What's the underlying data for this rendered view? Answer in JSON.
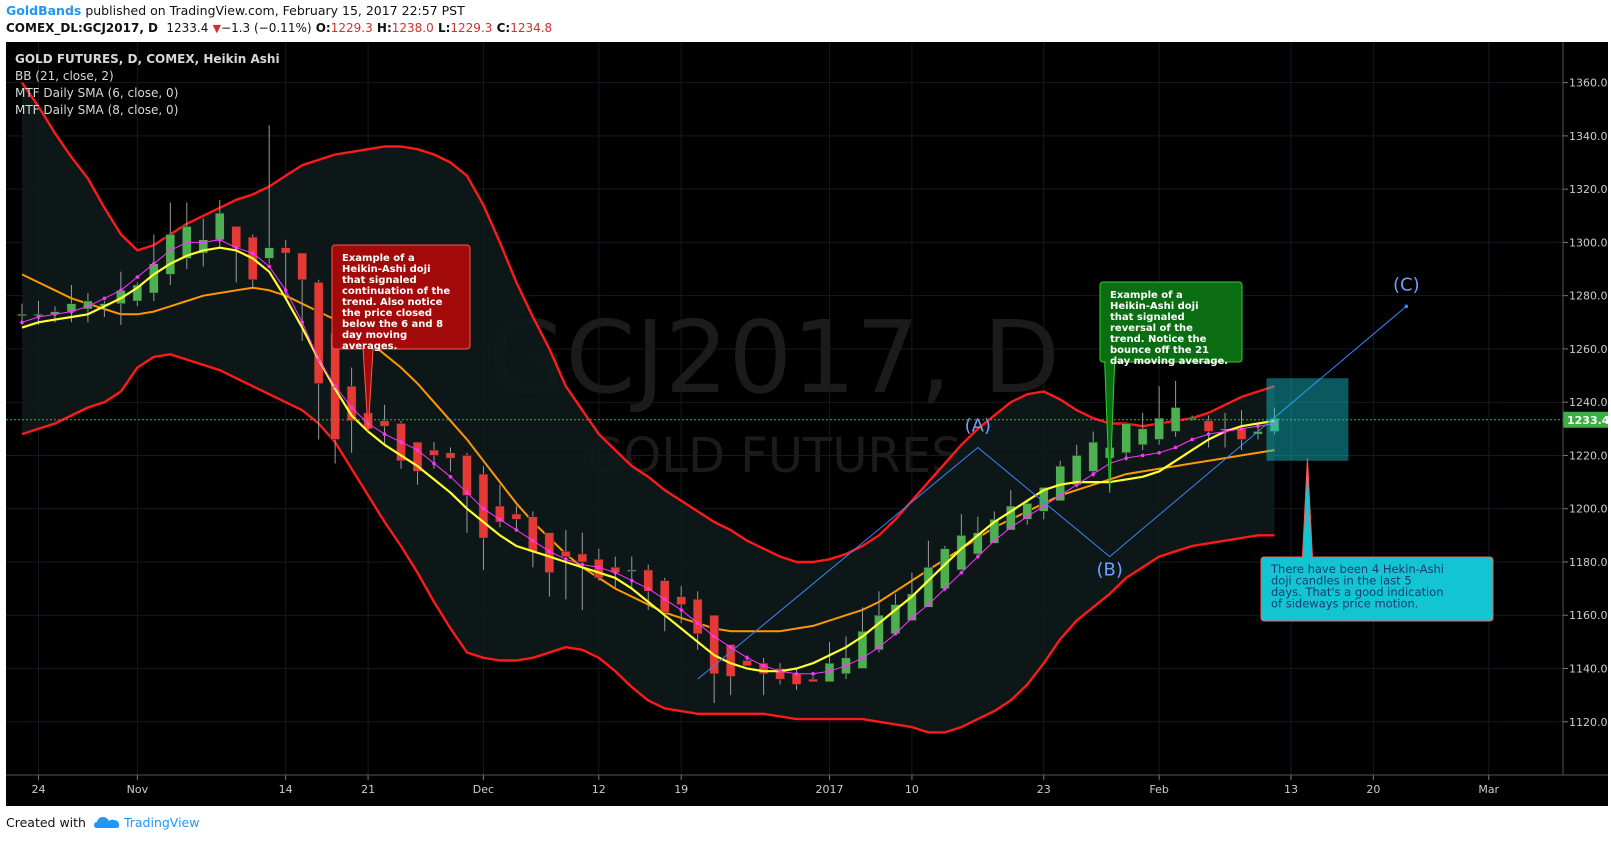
{
  "header": {
    "author": "GoldBands",
    "published": "published on TradingView.com, February 15, 2017 22:57 PST",
    "symbol_line": "COMEX_DL:GCJ2017, D",
    "last_price": "1233.4",
    "change": "−1.3 (−0.11%)",
    "o_label": "O:",
    "o": "1229.3",
    "h_label": "H:",
    "h": "1238.0",
    "l_label": "L:",
    "l": "1229.3",
    "c_label": "C:",
    "c": "1234.8"
  },
  "legend": {
    "title": "GOLD FUTURES, D, COMEX, Heikin Ashi",
    "bb": "BB (21, close, 2)",
    "sma6": "MTF Daily SMA (6, close, 0)",
    "sma8": "MTF Daily SMA (8, close, 0)"
  },
  "watermark": {
    "line1": "GCJ2017, D",
    "line2": "GOLD FUTURES"
  },
  "price_tag": "1233.4",
  "footer": {
    "created_with": "Created with",
    "brand": "TradingView"
  },
  "colors": {
    "background": "#000000",
    "up_candle": "#4caf50",
    "down_candle": "#e53935",
    "bb_band": "#ff1a1a",
    "bb_basis": "#ff9800",
    "sma6": "#ff33ff",
    "sma8": "#ffff33",
    "trendline": "#3a84ff",
    "note_red": "#a30b0b",
    "note_green": "#0b6e12",
    "note_cyan": "#13c5d2"
  },
  "chart_data": {
    "type": "candlestick",
    "style": "Heikin Ashi",
    "ylim": [
      1108,
      1370
    ],
    "y_ticks": [
      "1120.0",
      "1140.0",
      "1160.0",
      "1180.0",
      "1200.0",
      "1220.0",
      "1240.0",
      "1260.0",
      "1280.0",
      "1300.0",
      "1320.0",
      "1340.0",
      "1360.0"
    ],
    "x_ticks": [
      {
        "label": "24",
        "bar": 1
      },
      {
        "label": "Nov",
        "bar": 7
      },
      {
        "label": "14",
        "bar": 16
      },
      {
        "label": "21",
        "bar": 21
      },
      {
        "label": "Dec",
        "bar": 28
      },
      {
        "label": "12",
        "bar": 35
      },
      {
        "label": "19",
        "bar": 40
      },
      {
        "label": "2017",
        "bar": 49
      },
      {
        "label": "10",
        "bar": 54
      },
      {
        "label": "23",
        "bar": 62
      },
      {
        "label": "Feb",
        "bar": 69
      },
      {
        "label": "13",
        "bar": 77
      },
      {
        "label": "20",
        "bar": 82
      },
      {
        "label": "Mar",
        "bar": 89
      }
    ],
    "candles": [
      {
        "o": 1273,
        "h": 1277,
        "l": 1269,
        "c": 1273
      },
      {
        "o": 1273,
        "h": 1278,
        "l": 1269,
        "c": 1273
      },
      {
        "o": 1273,
        "h": 1276,
        "l": 1270,
        "c": 1274
      },
      {
        "o": 1274,
        "h": 1284,
        "l": 1270,
        "c": 1277
      },
      {
        "o": 1275,
        "h": 1281,
        "l": 1270,
        "c": 1278
      },
      {
        "o": 1276,
        "h": 1278,
        "l": 1272,
        "c": 1277
      },
      {
        "o": 1277,
        "h": 1289,
        "l": 1269,
        "c": 1282
      },
      {
        "o": 1278,
        "h": 1285,
        "l": 1276,
        "c": 1284
      },
      {
        "o": 1281,
        "h": 1303,
        "l": 1278,
        "c": 1292
      },
      {
        "o": 1288,
        "h": 1315,
        "l": 1284,
        "c": 1303
      },
      {
        "o": 1294,
        "h": 1315,
        "l": 1290,
        "c": 1306
      },
      {
        "o": 1296,
        "h": 1309,
        "l": 1291,
        "c": 1301
      },
      {
        "o": 1301,
        "h": 1316,
        "l": 1298,
        "c": 1311
      },
      {
        "o": 1306,
        "h": 1306,
        "l": 1285,
        "c": 1298
      },
      {
        "o": 1302,
        "h": 1303,
        "l": 1283,
        "c": 1286
      },
      {
        "o": 1294,
        "h": 1344,
        "l": 1292,
        "c": 1298
      },
      {
        "o": 1298,
        "h": 1301,
        "l": 1279,
        "c": 1296
      },
      {
        "o": 1296,
        "h": 1296,
        "l": 1263,
        "c": 1286
      },
      {
        "o": 1285,
        "h": 1286,
        "l": 1226,
        "c": 1247
      },
      {
        "o": 1266,
        "h": 1270,
        "l": 1217,
        "c": 1226
      },
      {
        "o": 1246,
        "h": 1253,
        "l": 1221,
        "c": 1233
      },
      {
        "o": 1236,
        "h": 1247,
        "l": 1229,
        "c": 1230
      },
      {
        "o": 1233,
        "h": 1239,
        "l": 1224,
        "c": 1231
      },
      {
        "o": 1232,
        "h": 1233,
        "l": 1215,
        "c": 1218
      },
      {
        "o": 1225,
        "h": 1225,
        "l": 1209,
        "c": 1214
      },
      {
        "o": 1222,
        "h": 1225,
        "l": 1215,
        "c": 1220
      },
      {
        "o": 1221,
        "h": 1223,
        "l": 1214,
        "c": 1219
      },
      {
        "o": 1220,
        "h": 1221,
        "l": 1191,
        "c": 1205
      },
      {
        "o": 1213,
        "h": 1216,
        "l": 1177,
        "c": 1189
      },
      {
        "o": 1201,
        "h": 1209,
        "l": 1193,
        "c": 1195
      },
      {
        "o": 1198,
        "h": 1201,
        "l": 1192,
        "c": 1196
      },
      {
        "o": 1197,
        "h": 1199,
        "l": 1178,
        "c": 1184
      },
      {
        "o": 1191,
        "h": 1191,
        "l": 1167,
        "c": 1176
      },
      {
        "o": 1184,
        "h": 1192,
        "l": 1166,
        "c": 1182
      },
      {
        "o": 1183,
        "h": 1191,
        "l": 1162,
        "c": 1180
      },
      {
        "o": 1181,
        "h": 1185,
        "l": 1173,
        "c": 1174
      },
      {
        "o": 1178,
        "h": 1182,
        "l": 1170,
        "c": 1176
      },
      {
        "o": 1177,
        "h": 1182,
        "l": 1170,
        "c": 1177
      },
      {
        "o": 1177,
        "h": 1179,
        "l": 1162,
        "c": 1169
      },
      {
        "o": 1173,
        "h": 1174,
        "l": 1154,
        "c": 1161
      },
      {
        "o": 1167,
        "h": 1171,
        "l": 1157,
        "c": 1164
      },
      {
        "o": 1166,
        "h": 1169,
        "l": 1147,
        "c": 1153
      },
      {
        "o": 1160,
        "h": 1160,
        "l": 1127,
        "c": 1138
      },
      {
        "o": 1149,
        "h": 1149,
        "l": 1130,
        "c": 1137
      },
      {
        "o": 1143,
        "h": 1145,
        "l": 1141,
        "c": 1141
      },
      {
        "o": 1142,
        "h": 1144,
        "l": 1130,
        "c": 1138
      },
      {
        "o": 1140,
        "h": 1142,
        "l": 1134,
        "c": 1136
      },
      {
        "o": 1138,
        "h": 1140,
        "l": 1132,
        "c": 1134
      },
      {
        "o": 1136,
        "h": 1137,
        "l": 1135,
        "c": 1135
      },
      {
        "o": 1135,
        "h": 1150,
        "l": 1135,
        "c": 1142
      },
      {
        "o": 1138,
        "h": 1152,
        "l": 1136,
        "c": 1144
      },
      {
        "o": 1140,
        "h": 1163,
        "l": 1140,
        "c": 1154
      },
      {
        "o": 1147,
        "h": 1169,
        "l": 1146,
        "c": 1160
      },
      {
        "o": 1153,
        "h": 1168,
        "l": 1153,
        "c": 1164
      },
      {
        "o": 1158,
        "h": 1176,
        "l": 1158,
        "c": 1168
      },
      {
        "o": 1163,
        "h": 1188,
        "l": 1163,
        "c": 1178
      },
      {
        "o": 1170,
        "h": 1186,
        "l": 1169,
        "c": 1185
      },
      {
        "o": 1177,
        "h": 1198,
        "l": 1177,
        "c": 1190
      },
      {
        "o": 1183,
        "h": 1197,
        "l": 1182,
        "c": 1191
      },
      {
        "o": 1187,
        "h": 1199,
        "l": 1187,
        "c": 1196
      },
      {
        "o": 1192,
        "h": 1207,
        "l": 1192,
        "c": 1201
      },
      {
        "o": 1196,
        "h": 1203,
        "l": 1194,
        "c": 1202
      },
      {
        "o": 1199,
        "h": 1207,
        "l": 1196,
        "c": 1208
      },
      {
        "o": 1203,
        "h": 1218,
        "l": 1203,
        "c": 1216
      },
      {
        "o": 1209,
        "h": 1224,
        "l": 1208,
        "c": 1220
      },
      {
        "o": 1214,
        "h": 1229,
        "l": 1212,
        "c": 1225
      },
      {
        "o": 1219,
        "h": 1228,
        "l": 1215,
        "c": 1223
      },
      {
        "o": 1221,
        "h": 1232,
        "l": 1218,
        "c": 1232
      },
      {
        "o": 1224,
        "h": 1236,
        "l": 1222,
        "c": 1230
      },
      {
        "o": 1226,
        "h": 1246,
        "l": 1224,
        "c": 1234
      },
      {
        "o": 1229,
        "h": 1248,
        "l": 1227,
        "c": 1238
      },
      {
        "o": 1234,
        "h": 1235,
        "l": 1233,
        "c": 1234
      },
      {
        "o": 1233,
        "h": 1235,
        "l": 1223,
        "c": 1229
      },
      {
        "o": 1230,
        "h": 1236,
        "l": 1223,
        "c": 1230
      },
      {
        "o": 1230,
        "h": 1237,
        "l": 1222,
        "c": 1226
      },
      {
        "o": 1228,
        "h": 1232,
        "l": 1226,
        "c": 1229
      },
      {
        "o": 1229,
        "h": 1238,
        "l": 1228,
        "c": 1234
      }
    ],
    "series": [
      {
        "name": "BB (21, close, 2) upper",
        "values": [
          1360,
          1351,
          1341,
          1332,
          1324,
          1313,
          1303,
          1297,
          1299,
          1303,
          1307,
          1310,
          1313,
          1316,
          1318,
          1321,
          1325,
          1329,
          1331,
          1333,
          1334,
          1335,
          1336,
          1336,
          1335,
          1333,
          1330,
          1325,
          1314,
          1300,
          1285,
          1272,
          1260,
          1246,
          1237,
          1228,
          1222,
          1216,
          1212,
          1207,
          1203,
          1199,
          1195,
          1192,
          1188,
          1185,
          1182,
          1180,
          1180,
          1181,
          1183,
          1186,
          1190,
          1196,
          1203,
          1210,
          1217,
          1224,
          1230,
          1235,
          1240,
          1243,
          1244,
          1241,
          1237,
          1234,
          1232,
          1232,
          1231,
          1232,
          1233,
          1234,
          1236,
          1239,
          1242,
          1244,
          1246
        ]
      },
      {
        "name": "BB (21, close, 2) basis",
        "values": [
          1288,
          1285,
          1282,
          1279,
          1277,
          1275,
          1273,
          1273,
          1274,
          1276,
          1278,
          1280,
          1281,
          1282,
          1283,
          1282,
          1280,
          1277,
          1274,
          1271,
          1267,
          1263,
          1258,
          1253,
          1247,
          1240,
          1233,
          1226,
          1218,
          1210,
          1202,
          1195,
          1189,
          1183,
          1178,
          1174,
          1170,
          1167,
          1164,
          1161,
          1159,
          1157,
          1155,
          1154,
          1154,
          1154,
          1154,
          1155,
          1156,
          1158,
          1160,
          1162,
          1165,
          1169,
          1173,
          1177,
          1181,
          1185,
          1189,
          1193,
          1196,
          1199,
          1202,
          1205,
          1207,
          1209,
          1211,
          1213,
          1214,
          1215,
          1216,
          1217,
          1218,
          1219,
          1220,
          1221,
          1222
        ]
      },
      {
        "name": "BB (21, close, 2) lower",
        "values": [
          1228,
          1230,
          1232,
          1235,
          1238,
          1240,
          1244,
          1253,
          1257,
          1258,
          1256,
          1254,
          1252,
          1249,
          1246,
          1243,
          1240,
          1237,
          1232,
          1225,
          1215,
          1205,
          1195,
          1186,
          1176,
          1165,
          1155,
          1146,
          1144,
          1143,
          1143,
          1144,
          1146,
          1148,
          1147,
          1144,
          1139,
          1133,
          1128,
          1125,
          1124,
          1123,
          1123,
          1123,
          1123,
          1123,
          1122,
          1121,
          1121,
          1121,
          1121,
          1121,
          1120,
          1119,
          1118,
          1116,
          1116,
          1118,
          1121,
          1124,
          1128,
          1134,
          1142,
          1151,
          1158,
          1163,
          1168,
          1174,
          1178,
          1182,
          1184,
          1186,
          1187,
          1188,
          1189,
          1190,
          1190
        ]
      },
      {
        "name": "MTF Daily SMA (6, close, 0)",
        "values": [
          1270,
          1272,
          1273,
          1274,
          1276,
          1279,
          1282,
          1287,
          1292,
          1297,
          1300,
          1300,
          1301,
          1298,
          1296,
          1291,
          1282,
          1270,
          1256,
          1246,
          1238,
          1232,
          1228,
          1225,
          1222,
          1217,
          1212,
          1206,
          1200,
          1196,
          1192,
          1188,
          1184,
          1181,
          1179,
          1178,
          1176,
          1173,
          1170,
          1166,
          1162,
          1157,
          1152,
          1148,
          1144,
          1141,
          1139,
          1138,
          1138,
          1139,
          1141,
          1144,
          1148,
          1153,
          1159,
          1164,
          1170,
          1176,
          1182,
          1188,
          1193,
          1197,
          1201,
          1205,
          1209,
          1213,
          1217,
          1219,
          1220,
          1221,
          1223,
          1226,
          1228,
          1229,
          1230,
          1231,
          1232
        ]
      },
      {
        "name": "MTF Daily SMA (8, close, 0)",
        "values": [
          1268,
          1270,
          1271,
          1272,
          1273,
          1276,
          1279,
          1283,
          1288,
          1292,
          1295,
          1297,
          1298,
          1297,
          1294,
          1289,
          1279,
          1268,
          1256,
          1245,
          1235,
          1229,
          1224,
          1220,
          1216,
          1211,
          1206,
          1200,
          1195,
          1190,
          1186,
          1184,
          1182,
          1180,
          1178,
          1176,
          1174,
          1170,
          1165,
          1160,
          1155,
          1150,
          1145,
          1142,
          1140,
          1139,
          1139,
          1140,
          1142,
          1145,
          1148,
          1152,
          1157,
          1162,
          1167,
          1173,
          1179,
          1185,
          1190,
          1195,
          1199,
          1203,
          1207,
          1209,
          1210,
          1210,
          1210,
          1211,
          1212,
          1214,
          1218,
          1222,
          1226,
          1229,
          1231,
          1232,
          1233
        ]
      }
    ],
    "trendlines": [
      {
        "points": [
          [
            41,
            1136
          ],
          [
            58,
            1223
          ],
          [
            66,
            1182
          ],
          [
            84,
            1276
          ]
        ]
      }
    ],
    "point_labels": [
      {
        "text": "(A)",
        "bar": 58,
        "price": 1229
      },
      {
        "text": "(B)",
        "bar": 66,
        "price": 1175
      },
      {
        "text": "(C)",
        "bar": 84,
        "price": 1282
      }
    ],
    "current_price_line": 1233.4,
    "annotations": [
      {
        "text": "Example of a Heikin-Ashi doji that signaled continuation of the trend. Also notice the price closed below the 6 and 8 day moving averages.",
        "color": "red",
        "pointer_bar": 21,
        "pointer_price": 1229
      },
      {
        "text": "Example of a Heikin-Ashi doji that signaled reversal of the trend. Notice the bounce off the 21 day moving average.",
        "color": "green",
        "pointer_bar": 66,
        "pointer_price": 1206
      },
      {
        "text": "There have been 4 Hekin-Ashi doji candles in the last 5 days. That's a good indication of sideways price motion.",
        "color": "cyan",
        "pointer_bar": 78,
        "pointer_price": 1219
      }
    ]
  }
}
